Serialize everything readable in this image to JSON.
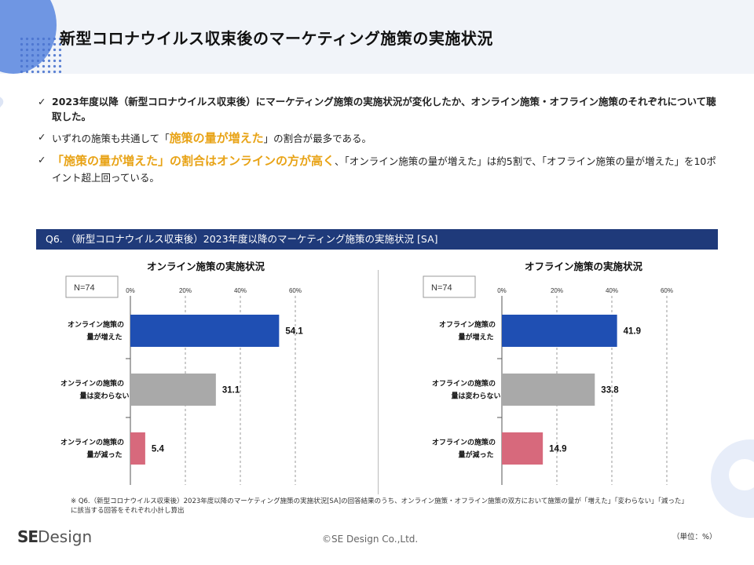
{
  "title": "新型コロナウイルス収束後のマーケティング施策の実施状況",
  "bullets": {
    "b1": "2023年度以降（新型コロナウイルス収束後）にマーケティング施策の実施状況が変化したか、オンライン施策・オフライン施策のそれぞれについて聴取した。",
    "b2_pre": "いずれの施策も共通して「",
    "b2_hl": "施策の量が増えた",
    "b2_post": "」の割合が最多である。",
    "b3_hl": "「施策の量が増えた」の割合はオンラインの方が高く",
    "b3_post": "、「オンライン施策の量が増えた」は約5割で、「オフライン施策の量が増えた」を10ポイント超上回っている。"
  },
  "question_bar": "Q6. （新型コロナウイルス収束後）2023年度以降のマーケティング施策の実施状況 [SA]",
  "chart_data": [
    {
      "type": "bar",
      "orientation": "horizontal",
      "title": "オンライン施策の実施状況",
      "n_label": "N=74",
      "categories": [
        [
          "オンライン施策の",
          "量が増えた"
        ],
        [
          "オンラインの施策の",
          "量は変わらない"
        ],
        [
          "オンラインの施策の",
          "量が減った"
        ]
      ],
      "values": [
        54.1,
        31.1,
        5.4
      ],
      "colors": [
        "#1f4fb3",
        "#a9a9a9",
        "#d7697c"
      ],
      "xlim": [
        0,
        60
      ],
      "ticks": [
        0,
        20,
        40,
        60
      ],
      "tick_labels": [
        "0%",
        "20%",
        "40%",
        "60%"
      ],
      "value_labels": [
        "54.1",
        "31.1",
        "5.4"
      ]
    },
    {
      "type": "bar",
      "orientation": "horizontal",
      "title": "オフライン施策の実施状況",
      "n_label": "N=74",
      "categories": [
        [
          "オフライン施策の",
          "量が増えた"
        ],
        [
          "オフラインの施策の",
          "量は変わらない"
        ],
        [
          "オフラインの施策の",
          "量が減った"
        ]
      ],
      "values": [
        41.9,
        33.8,
        14.9
      ],
      "colors": [
        "#1f4fb3",
        "#a9a9a9",
        "#d7697c"
      ],
      "xlim": [
        0,
        60
      ],
      "ticks": [
        0,
        20,
        40,
        60
      ],
      "tick_labels": [
        "0%",
        "20%",
        "40%",
        "60%"
      ],
      "value_labels": [
        "41.9",
        "33.8",
        "14.9"
      ]
    }
  ],
  "footnote": "※ Q6.（新型コロナウイルス収束後）2023年度以降のマーケティング施策の実施状況[SA]の回答結果のうち、オンライン施策・オフライン施策の双方において施策の量が「増えた」「変わらない」「減った」に該当する回答をそれぞれ小計し算出",
  "unit": "（単位：%）",
  "copyright": "©SE Design Co.,Ltd.",
  "logo": {
    "se": "SE",
    "design": "Design"
  }
}
